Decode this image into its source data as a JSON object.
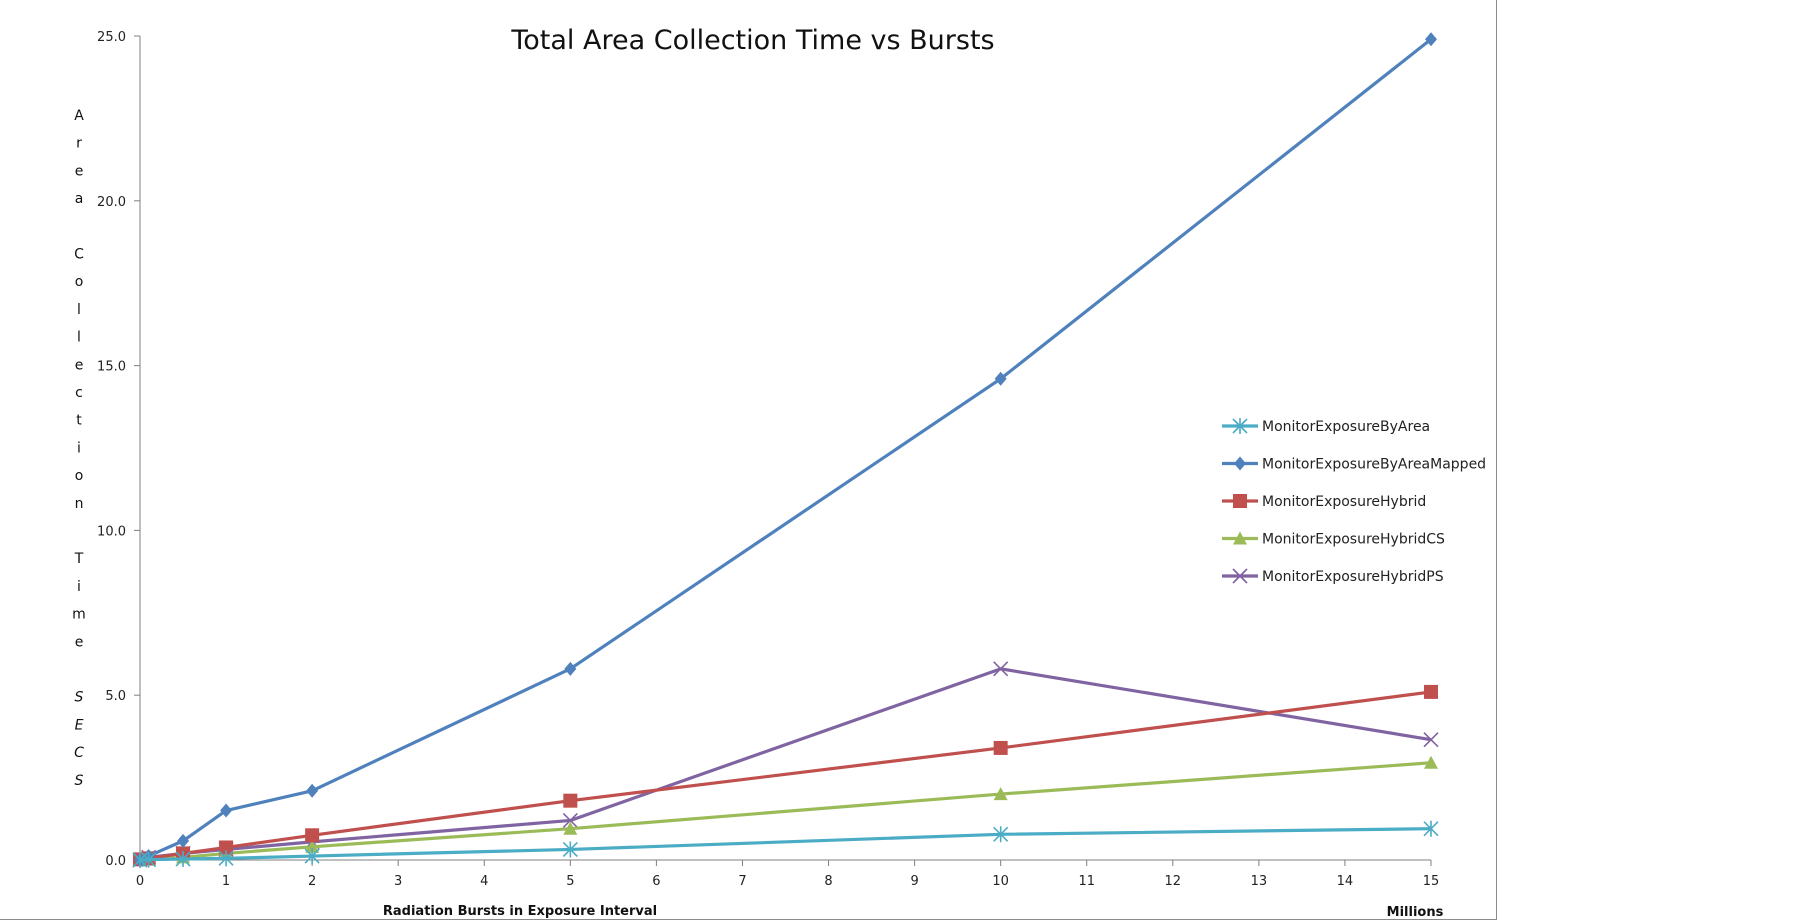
{
  "chart_data": {
    "type": "line",
    "title": "Total Area Collection Time vs Bursts",
    "xlabel": "Radiation Bursts in Exposure Interval",
    "x_unit_label": "Millions",
    "ylabel_lines": [
      "Area",
      "Collection",
      "Time",
      "SECS"
    ],
    "xlim": [
      0,
      15
    ],
    "ylim": [
      0,
      25
    ],
    "x_ticks": [
      0,
      1,
      2,
      3,
      4,
      5,
      6,
      7,
      8,
      9,
      10,
      11,
      12,
      13,
      14,
      15
    ],
    "y_ticks": [
      "0.0",
      "5.0",
      "10.0",
      "15.0",
      "20.0",
      "25.0"
    ],
    "legend_position": "right",
    "grid": false,
    "series": [
      {
        "name": "MonitorExposureByArea",
        "color": "#4bacc6",
        "marker": "asterisk",
        "points": [
          [
            0,
            0.0
          ],
          [
            0.1,
            0.01
          ],
          [
            0.5,
            0.03
          ],
          [
            1,
            0.05
          ],
          [
            2,
            0.12
          ],
          [
            5,
            0.32
          ],
          [
            10,
            0.78
          ],
          [
            15,
            0.95
          ]
        ]
      },
      {
        "name": "MonitorExposureByAreaMapped",
        "color": "#4f81bd",
        "marker": "diamond",
        "points": [
          [
            0,
            0.0
          ],
          [
            0.1,
            0.12
          ],
          [
            0.5,
            0.58
          ],
          [
            1,
            1.5
          ],
          [
            2,
            2.1
          ],
          [
            5,
            5.8
          ],
          [
            10,
            14.6
          ],
          [
            15,
            24.9
          ]
        ]
      },
      {
        "name": "MonitorExposureHybrid",
        "color": "#c0504d",
        "marker": "square",
        "points": [
          [
            0,
            0.02
          ],
          [
            0.1,
            0.05
          ],
          [
            0.5,
            0.2
          ],
          [
            1,
            0.38
          ],
          [
            2,
            0.75
          ],
          [
            5,
            1.8
          ],
          [
            10,
            3.4
          ],
          [
            15,
            5.1
          ]
        ]
      },
      {
        "name": "MonitorExposureHybridCS",
        "color": "#9bbb59",
        "marker": "triangle",
        "points": [
          [
            0,
            0.0
          ],
          [
            0.1,
            0.01
          ],
          [
            0.5,
            0.08
          ],
          [
            1,
            0.2
          ],
          [
            2,
            0.4
          ],
          [
            5,
            0.95
          ],
          [
            10,
            2.0
          ],
          [
            15,
            2.95
          ]
        ]
      },
      {
        "name": "MonitorExposureHybridPS",
        "color": "#8064a2",
        "marker": "x",
        "points": [
          [
            0,
            0.0
          ],
          [
            0.1,
            0.08
          ],
          [
            0.5,
            0.2
          ],
          [
            1,
            0.32
          ],
          [
            2,
            0.55
          ],
          [
            5,
            1.2
          ],
          [
            10,
            5.8
          ],
          [
            15,
            3.65
          ]
        ]
      }
    ]
  }
}
